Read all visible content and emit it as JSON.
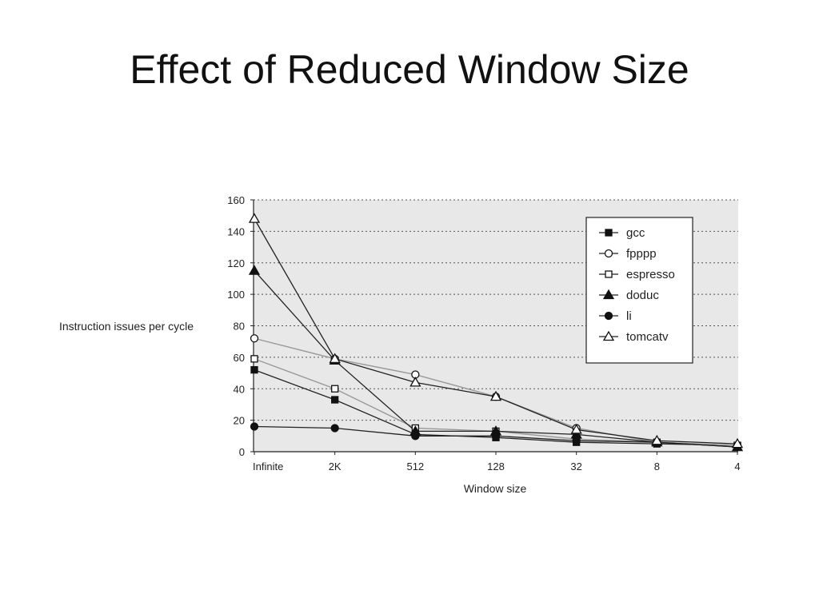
{
  "slide": {
    "title": "Effect of Reduced Window Size"
  },
  "colors": {
    "plot_background": "#e8e8e8",
    "grid": "#555555",
    "dark_line": "#222222",
    "light_line": "#999999"
  },
  "chart_data": {
    "type": "line",
    "xlabel": "Window size",
    "ylabel": "Instruction issues per cycle",
    "categories": [
      "Infinite",
      "2K",
      "512",
      "128",
      "32",
      "8",
      "4"
    ],
    "ylim": [
      0,
      160
    ],
    "yticks": [
      0,
      20,
      40,
      60,
      80,
      100,
      120,
      140,
      160
    ],
    "grid": true,
    "legend_position": "top-right",
    "series": [
      {
        "name": "gcc",
        "marker": "square-filled",
        "line": "dark",
        "values": [
          52,
          33,
          11,
          9,
          6,
          5,
          4
        ]
      },
      {
        "name": "fpppp",
        "marker": "circle-open",
        "line": "light",
        "values": [
          72,
          59,
          49,
          35,
          15,
          6,
          4
        ]
      },
      {
        "name": "espresso",
        "marker": "square-open",
        "line": "light",
        "values": [
          59,
          40,
          15,
          13,
          8,
          6,
          4
        ]
      },
      {
        "name": "doduc",
        "marker": "triangle-filled",
        "line": "dark",
        "values": [
          115,
          58,
          13,
          13,
          11,
          6,
          3
        ]
      },
      {
        "name": "li",
        "marker": "circle-filled",
        "line": "dark",
        "values": [
          16,
          15,
          10,
          10,
          7,
          6,
          3
        ]
      },
      {
        "name": "tomcatv",
        "marker": "triangle-open",
        "line": "dark",
        "values": [
          148,
          59,
          44,
          35,
          14,
          7,
          5
        ]
      }
    ]
  }
}
